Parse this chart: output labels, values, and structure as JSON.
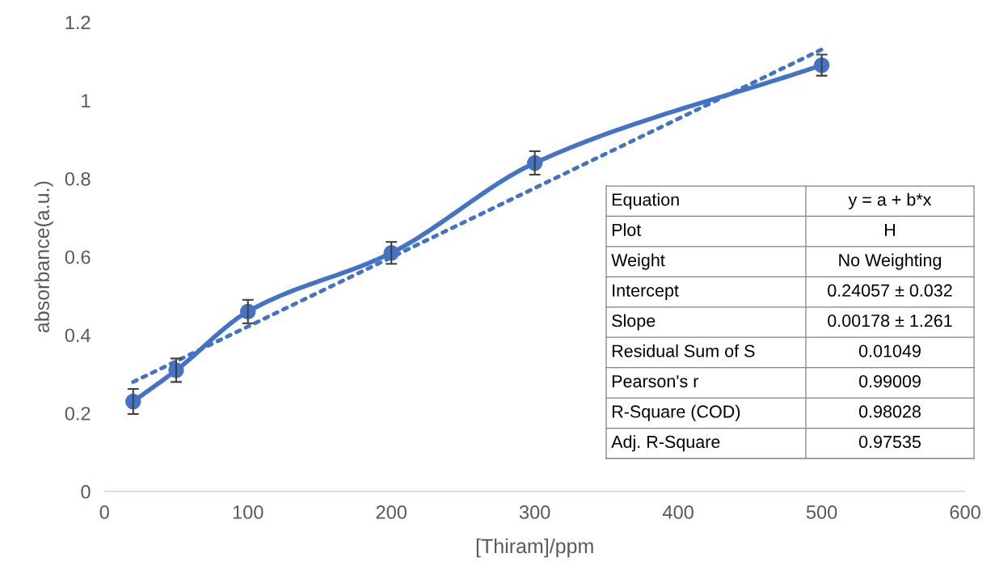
{
  "chart_data": {
    "type": "line",
    "xlabel": "[Thiram]/ppm",
    "ylabel": "absorbance(a.u.)",
    "xlim": [
      0,
      600
    ],
    "xticks": [
      0,
      100,
      200,
      300,
      400,
      500,
      600
    ],
    "ylim": [
      0,
      1.2
    ],
    "yticks": [
      0,
      0.2,
      0.4,
      0.6,
      0.8,
      1,
      1.2
    ],
    "grid": false,
    "series": [
      {
        "color": "#4472c4",
        "marker": "circle",
        "line_style": "solid",
        "x": [
          20,
          50,
          100,
          200,
          300,
          500
        ],
        "values": [
          0.23,
          0.31,
          0.46,
          0.61,
          0.84,
          1.09
        ],
        "errors": [
          0.032,
          0.03,
          0.03,
          0.028,
          0.03,
          0.027
        ]
      },
      {
        "color": "#4472c4",
        "marker": "none",
        "line_style": "dotted",
        "x": [
          20,
          500
        ],
        "values": [
          0.28,
          1.13
        ]
      }
    ],
    "annotations": [
      "Equation",
      "y = a + b*x",
      "Plot",
      "H",
      "Weight",
      "No Weighting",
      "Intercept",
      "0.24057 ± 0.032",
      "Slope",
      "0.00178 ± 1.261",
      "Residual Sum of S",
      "0.01049",
      "Pearson's r",
      "0.99009",
      "R-Square (COD)",
      "0.98028",
      "Adj. R-Square",
      "0.97535"
    ]
  }
}
